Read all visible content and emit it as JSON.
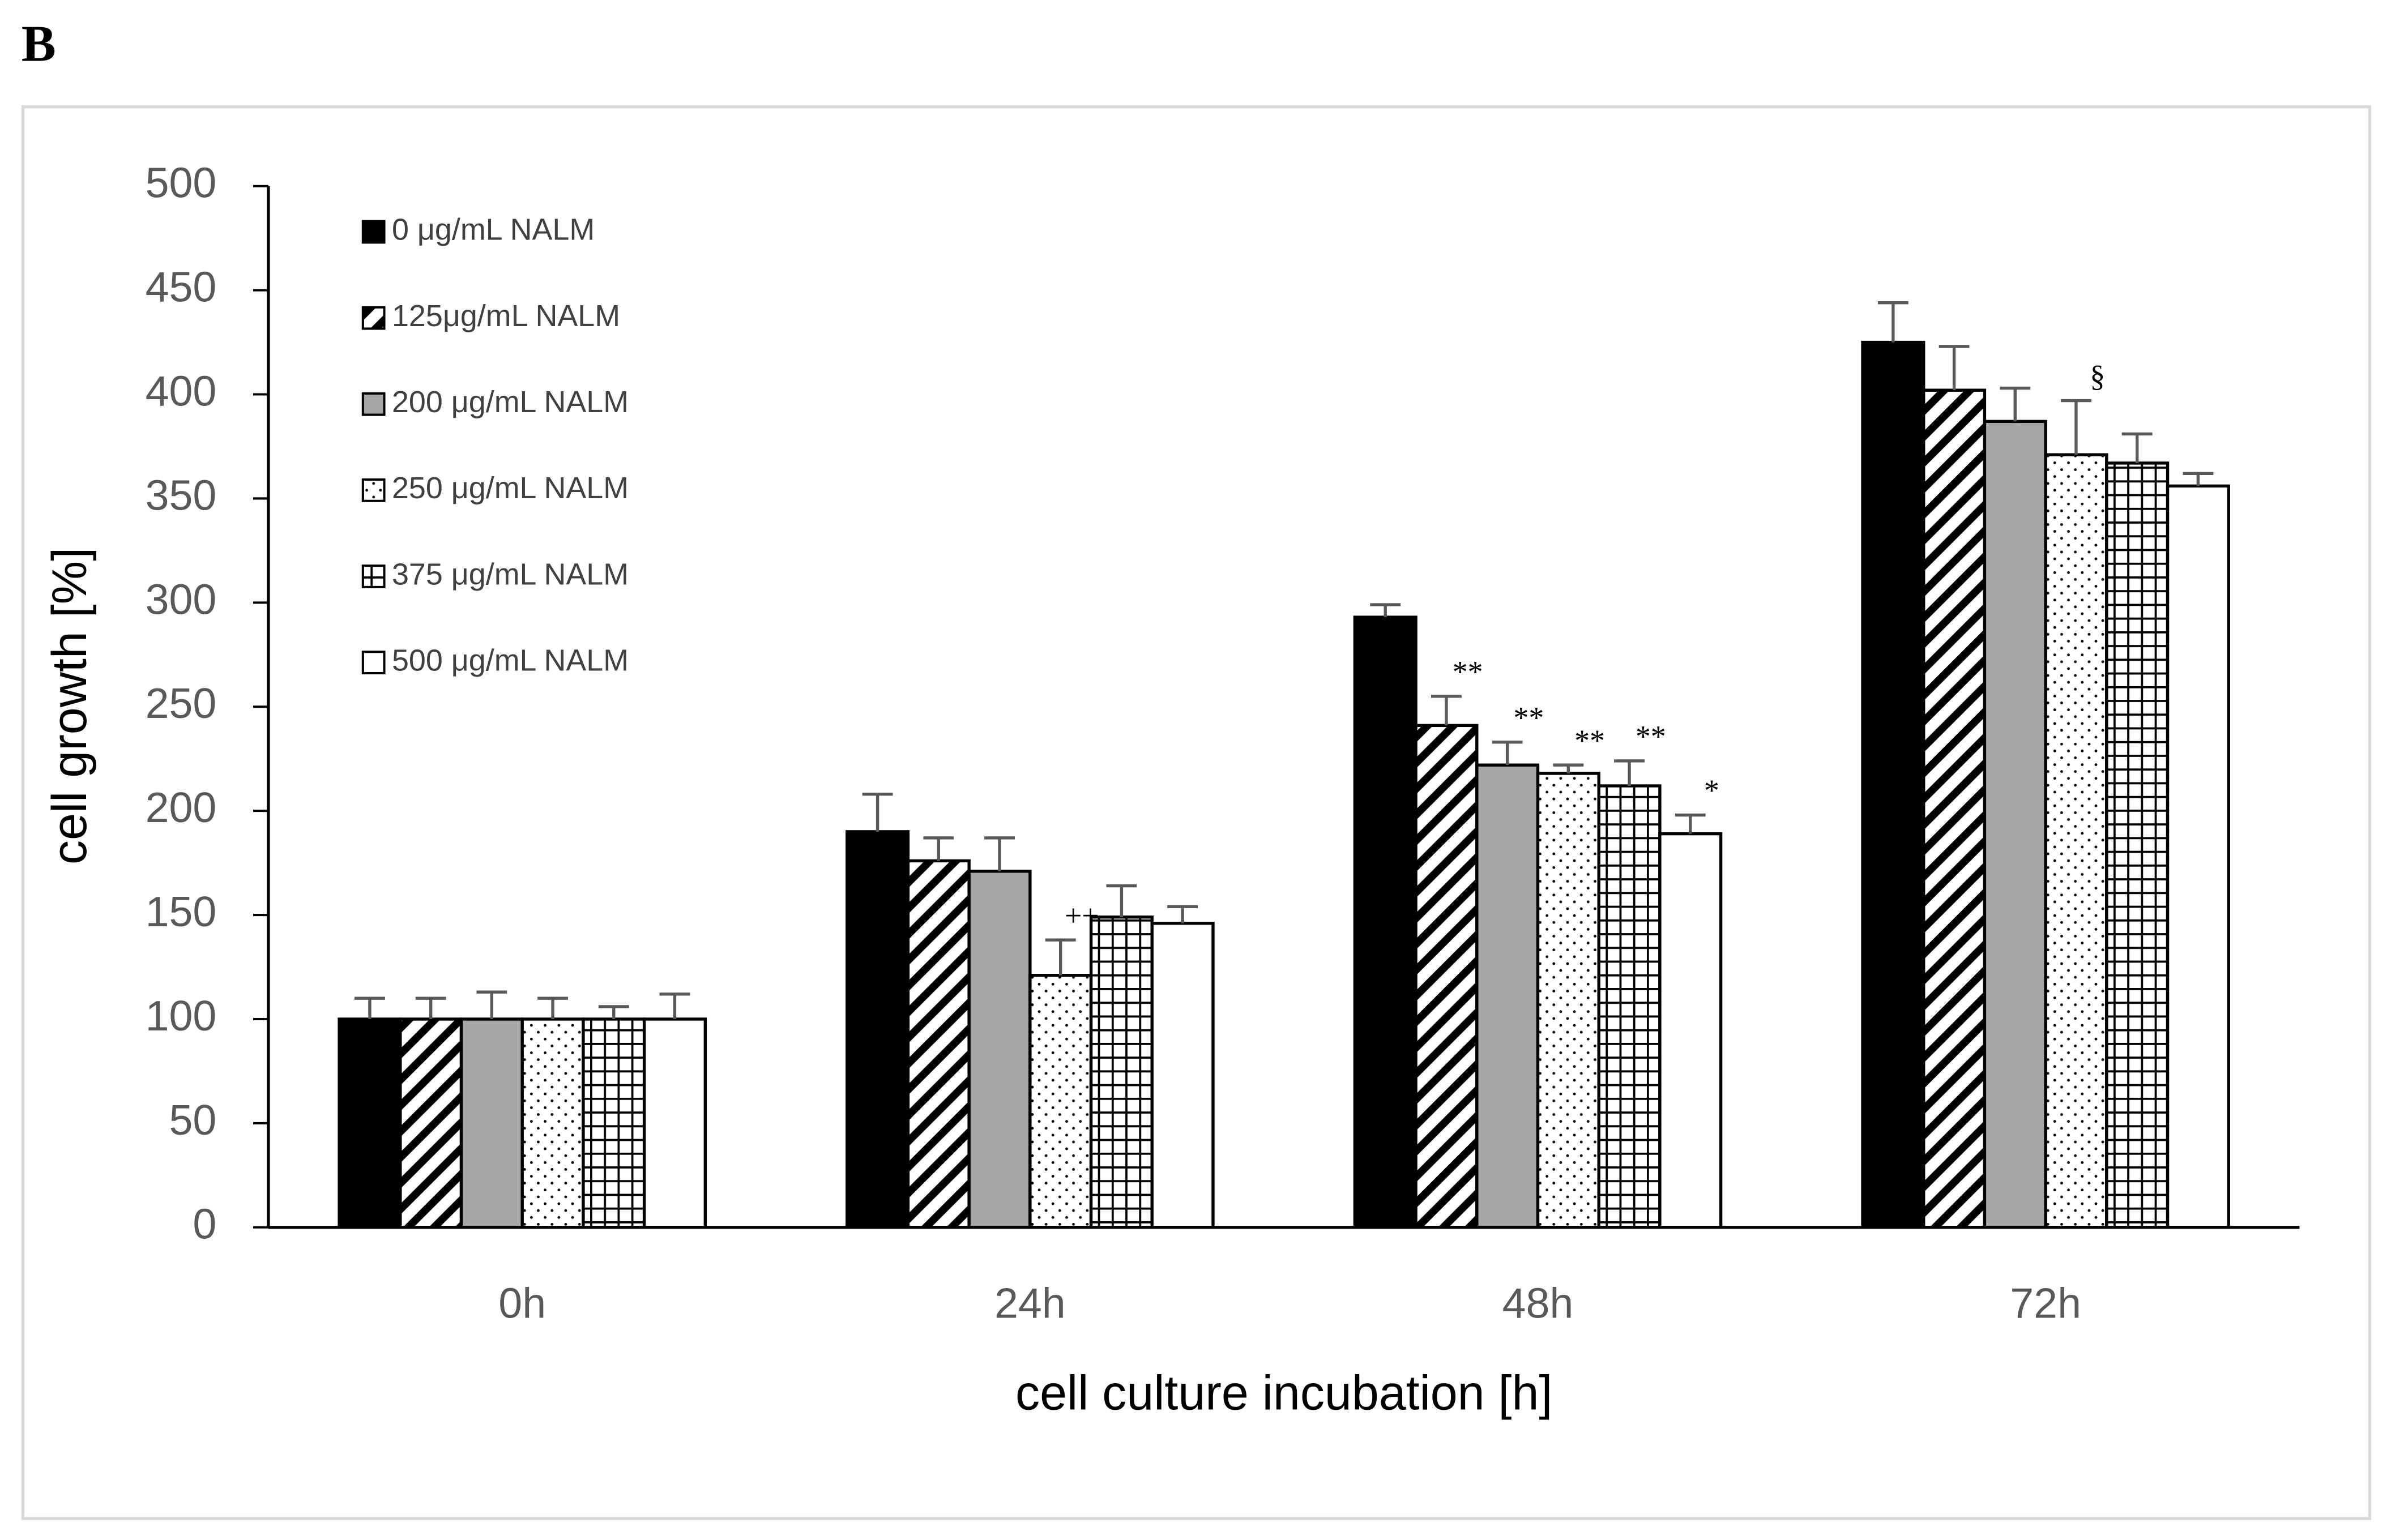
{
  "panel_label": "B",
  "chart_data": {
    "type": "bar",
    "x_label": "cell culture incubation [h]",
    "y_label": "cell growth [%]",
    "categories": [
      "0h",
      "24h",
      "48h",
      "72h"
    ],
    "ylim": [
      0,
      500
    ],
    "yticks": [
      0,
      50,
      100,
      150,
      200,
      250,
      300,
      350,
      400,
      450,
      500
    ],
    "grid": false,
    "legend": "upper left",
    "series": [
      {
        "name": "0 μg/mL NALM",
        "color": "#000000",
        "pattern": "solid",
        "values": [
          100,
          190,
          293,
          425
        ],
        "errors": [
          10,
          18,
          6,
          19
        ],
        "significance": [
          null,
          null,
          null,
          null
        ]
      },
      {
        "name": "125μg/mL NALM",
        "color": "#000000",
        "pattern": "hatch",
        "values": [
          100,
          176,
          241,
          402
        ],
        "errors": [
          10,
          11,
          14,
          21
        ],
        "significance": [
          null,
          null,
          "**",
          null
        ]
      },
      {
        "name": "200 μg/mL NALM",
        "color": "#a6a6a6",
        "pattern": "solid",
        "values": [
          100,
          171,
          222,
          387
        ],
        "errors": [
          13,
          16,
          11,
          16
        ],
        "significance": [
          null,
          null,
          "**",
          null
        ]
      },
      {
        "name": "250 μg/mL NALM",
        "color": "#000000",
        "pattern": "dots",
        "values": [
          100,
          121,
          218,
          371
        ],
        "errors": [
          10,
          17,
          4,
          26
        ],
        "significance": [
          null,
          "++",
          "**",
          "§"
        ]
      },
      {
        "name": "375 μg/mL NALM",
        "color": "#000000",
        "pattern": "grid",
        "values": [
          100,
          149,
          212,
          367
        ],
        "errors": [
          6,
          15,
          12,
          14
        ],
        "significance": [
          null,
          null,
          "**",
          null
        ]
      },
      {
        "name": "500 μg/mL NALM",
        "color": "#ffffff",
        "pattern": "solid",
        "values": [
          100,
          146,
          189,
          356
        ],
        "errors": [
          12,
          8,
          9,
          6
        ],
        "significance": [
          null,
          null,
          "*",
          null
        ]
      }
    ]
  }
}
